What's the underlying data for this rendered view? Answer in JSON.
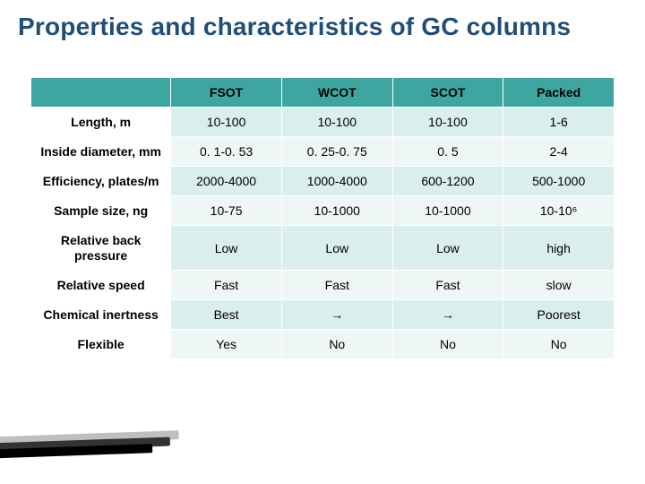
{
  "title": "Properties and characteristics of GC columns",
  "colors": {
    "title_color": "#1f4e79",
    "header_bg": "#3ea6a0",
    "band_a_bg": "#d9eeed",
    "band_b_bg": "#eef7f6",
    "border_color": "#ffffff",
    "background": "#ffffff",
    "stroke_dark": "#000000",
    "stroke_mid": "#333333",
    "stroke_light": "#bfbfbf"
  },
  "table": {
    "columns": [
      "",
      "FSOT",
      "WCOT",
      "SCOT",
      "Packed"
    ],
    "col_widths_pct": [
      24,
      19,
      19,
      19,
      19
    ],
    "header_fontsize_pt": 14,
    "cell_fontsize_pt": 14,
    "row_headers": [
      "Length, m",
      "Inside diameter, mm",
      "Efficiency, plates/m",
      "Sample size, ng",
      "Relative back pressure",
      "Relative speed",
      "Chemical inertness",
      "Flexible"
    ],
    "rows": [
      [
        "10-100",
        "10-100",
        "10-100",
        "1-6"
      ],
      [
        "0. 1-0. 53",
        "0. 25-0. 75",
        "0. 5",
        "2-4"
      ],
      [
        "2000-4000",
        "1000-4000",
        "600-1200",
        "500-1000"
      ],
      [
        "10-75",
        "10-1000",
        "10-1000",
        "10-10⁶"
      ],
      [
        "Low",
        "Low",
        "Low",
        "high"
      ],
      [
        "Fast",
        "Fast",
        "Fast",
        "slow"
      ],
      [
        "Best",
        "→",
        "→",
        "Poorest"
      ],
      [
        "Yes",
        "No",
        "No",
        "No"
      ]
    ]
  }
}
